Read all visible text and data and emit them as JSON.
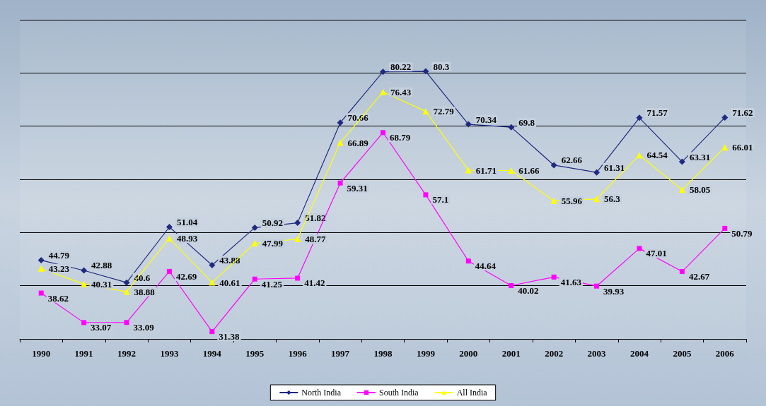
{
  "chart_data": {
    "type": "line",
    "categories": [
      "1990",
      "1991",
      "1992",
      "1993",
      "1994",
      "1995",
      "1996",
      "1997",
      "1998",
      "1999",
      "2000",
      "2001",
      "2002",
      "2003",
      "2004",
      "2005",
      "2006"
    ],
    "series": [
      {
        "name": "North India",
        "color": "#1f2a80",
        "marker": "diamond",
        "values": [
          44.79,
          42.88,
          40.6,
          51.04,
          43.88,
          50.92,
          51.82,
          70.66,
          80.22,
          80.3,
          70.34,
          69.8,
          62.66,
          61.31,
          71.57,
          63.31,
          71.62
        ]
      },
      {
        "name": "South India",
        "color": "#ff00ff",
        "marker": "square",
        "values": [
          38.62,
          33.07,
          33.09,
          42.69,
          31.38,
          41.25,
          41.42,
          59.31,
          68.79,
          57.1,
          44.64,
          40.02,
          41.63,
          39.93,
          47.01,
          42.67,
          50.79
        ]
      },
      {
        "name": "All India",
        "color": "#ffff00",
        "marker": "triangle",
        "values": [
          43.23,
          40.31,
          38.88,
          48.93,
          40.61,
          47.99,
          48.77,
          66.89,
          76.43,
          72.79,
          61.71,
          61.66,
          55.96,
          56.3,
          64.54,
          58.05,
          66.01
        ]
      }
    ],
    "ylim": [
      30,
      90
    ],
    "yticks": [
      {
        "value": 30,
        "label": null
      },
      {
        "value": 40,
        "label": null
      },
      {
        "value": 50,
        "label": null
      },
      {
        "value": 60,
        "label": null
      },
      {
        "value": 70,
        "label": null
      },
      {
        "value": 80,
        "label": null
      },
      {
        "value": 90,
        "label": null
      }
    ],
    "tick_labels": "x",
    "grid": "y",
    "data_labels": true,
    "legend": "bottom",
    "line_style": "solid"
  }
}
